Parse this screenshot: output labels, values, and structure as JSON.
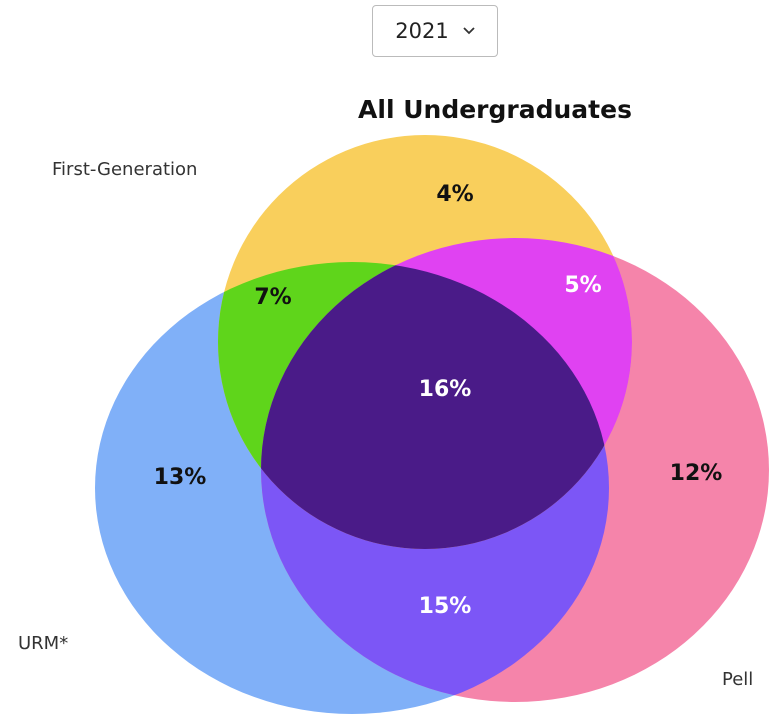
{
  "dropdown": {
    "selected": "2021"
  },
  "title": "All Undergraduates",
  "sets": {
    "first_generation": "First-Generation",
    "urm": "URM*",
    "pell": "Pell"
  },
  "regions": {
    "first_generation_only": "4%",
    "first_generation_urm": "7%",
    "first_generation_pell": "5%",
    "all_three": "16%",
    "urm_only": "13%",
    "pell_only": "12%",
    "urm_pell": "15%"
  }
}
